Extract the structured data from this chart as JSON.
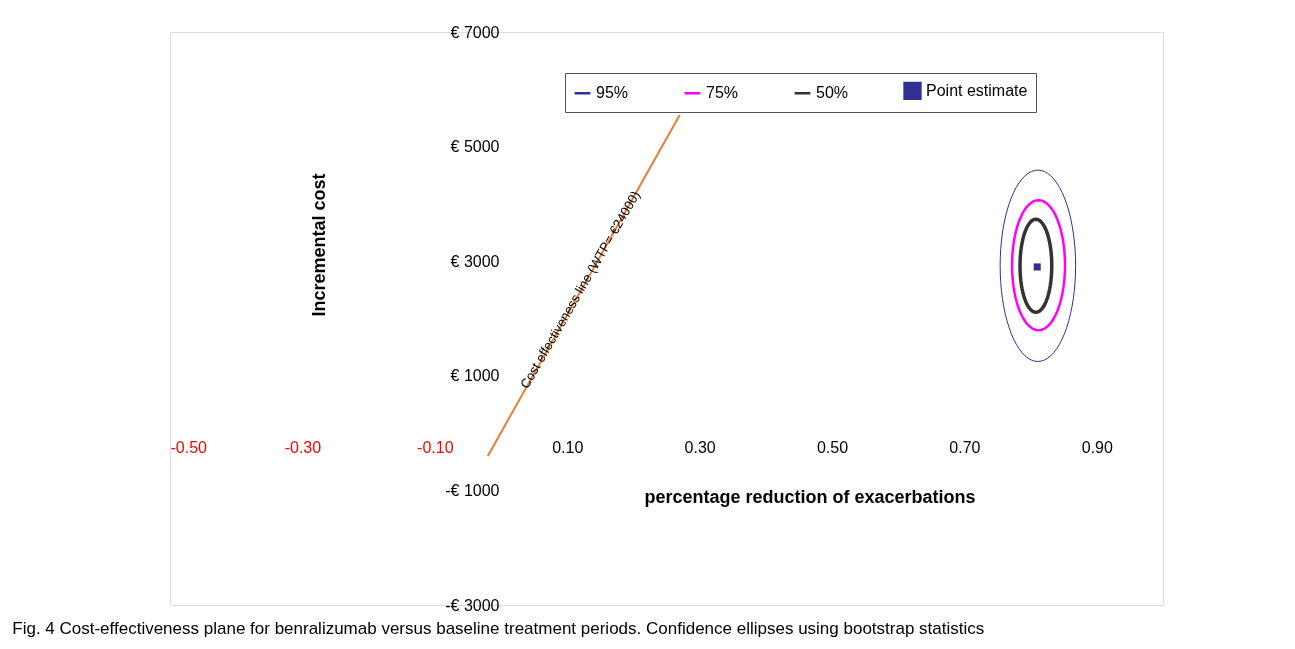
{
  "chart_data": {
    "type": "line",
    "title": "Fig. 4 Cost-effectiveness plane for benralizumab versus baseline treatment periods. Confidence ellipses using bootstrap statistics",
    "xlabel": "percentage reduction of exacerbations",
    "ylabel": "Incremental cost",
    "xlim": [
      -0.5,
      1.0
    ],
    "ylim": [
      -3000,
      7000
    ],
    "xticks": [
      {
        "value": -0.5,
        "label": "-0.50"
      },
      {
        "value": -0.3,
        "label": "-0.30"
      },
      {
        "value": -0.1,
        "label": "-0.10"
      },
      {
        "value": 0.1,
        "label": "0.10"
      },
      {
        "value": 0.3,
        "label": "0.30"
      },
      {
        "value": 0.5,
        "label": "0.50"
      },
      {
        "value": 0.7,
        "label": "0.70"
      },
      {
        "value": 0.9,
        "label": "0.90"
      }
    ],
    "yticks": [
      {
        "value": -3000,
        "label": "-€ 3000"
      },
      {
        "value": -1000,
        "label": "-€ 1000"
      },
      {
        "value": 1000,
        "label": "€ 1000"
      },
      {
        "value": 3000,
        "label": "€ 3000"
      },
      {
        "value": 5000,
        "label": "€ 5000"
      },
      {
        "value": 7000,
        "label": "€ 7000"
      }
    ],
    "grid": false,
    "legend": "top",
    "annotations": [
      "95%",
      "75%",
      "50%",
      {
        "text": "Cost effectiveness line (WTP= €24000)",
        "x": 0.12,
        "y": 2500
      }
    ],
    "series": [
      {
        "name": "Point estimate",
        "type": "scatter",
        "marker": "square",
        "color": "#2e3192",
        "x": [
          0.81
        ],
        "values": [
          2900
        ]
      },
      {
        "type": "line",
        "color": "#ed7d31",
        "x": [
          -0.02,
          0.27
        ],
        "values": [
          -400,
          5550
        ]
      }
    ]
  }
}
